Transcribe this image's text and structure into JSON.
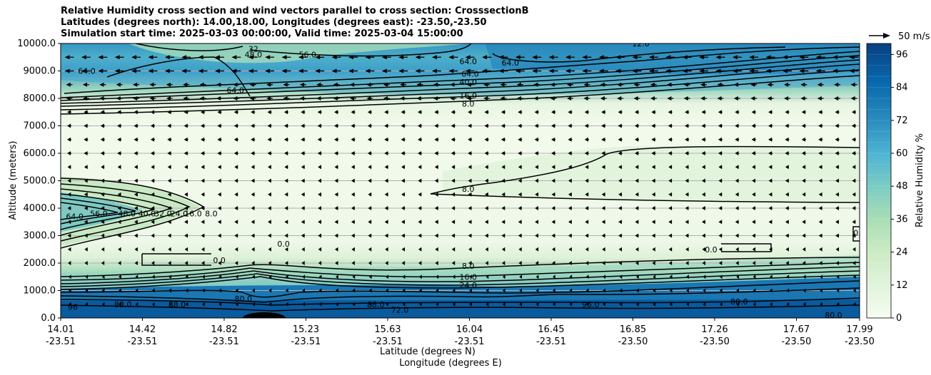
{
  "title_lines": [
    "Relative Humidity cross section and wind vectors parallel to cross section: CrosssectionB",
    "Latitudes (degrees north): 14.00,18.00, Longitudes (degrees east): -23.50,-23.50",
    "Simulation start time: 2025-03-03 00:00:00, Valid time: 2025-03-04 15:00:00"
  ],
  "chart_data": {
    "type": "heatmap",
    "title": "Relative Humidity cross section and wind vectors parallel to cross section: CrosssectionB",
    "ylabel": "Altitude (meters)",
    "xlabel_lines": [
      "Latitude (degrees N)",
      "Longitude (degrees E)"
    ],
    "ylim": [
      0,
      10000
    ],
    "y_ticks": [
      "0.0",
      "1000.0",
      "2000.0",
      "3000.0",
      "4000.0",
      "5000.0",
      "6000.0",
      "7000.0",
      "8000.0",
      "9000.0",
      "10000.0"
    ],
    "x_ticks": [
      {
        "lat": "14.01",
        "lon": "-23.51"
      },
      {
        "lat": "14.42",
        "lon": "-23.51"
      },
      {
        "lat": "14.82",
        "lon": "-23.51"
      },
      {
        "lat": "15.23",
        "lon": "-23.51"
      },
      {
        "lat": "15.63",
        "lon": "-23.51"
      },
      {
        "lat": "16.04",
        "lon": "-23.51"
      },
      {
        "lat": "16.45",
        "lon": "-23.51"
      },
      {
        "lat": "16.85",
        "lon": "-23.50"
      },
      {
        "lat": "17.26",
        "lon": "-23.50"
      },
      {
        "lat": "17.67",
        "lon": "-23.50"
      },
      {
        "lat": "17.99",
        "lon": "-23.50"
      }
    ],
    "grid": true,
    "colorbar": {
      "label": "Relative Humidity %",
      "ticks": [
        "0",
        "12",
        "24",
        "36",
        "48",
        "60",
        "72",
        "84",
        "96"
      ],
      "range": [
        0,
        100
      ],
      "colors": [
        "#f7fcf0",
        "#e0f3db",
        "#ccebc5",
        "#a8ddb5",
        "#7bccc4",
        "#4eb3d3",
        "#2b8cbe",
        "#0868ac",
        "#084081"
      ]
    },
    "quiver_key": {
      "label": "50 m/s"
    },
    "contour_labels": [
      {
        "text": "48.0",
        "x": 14.97,
        "y": 9600
      },
      {
        "text": "56.0",
        "x": 15.24,
        "y": 9600
      },
      {
        "text": "64.0",
        "x": 14.14,
        "y": 9000
      },
      {
        "text": "32",
        "x": 14.97,
        "y": 9800
      },
      {
        "text": "64.0",
        "x": 14.88,
        "y": 8300
      },
      {
        "text": "64.0",
        "x": 16.04,
        "y": 9350
      },
      {
        "text": "64.0",
        "x": 16.05,
        "y": 8900
      },
      {
        "text": "40.0",
        "x": 16.04,
        "y": 8600
      },
      {
        "text": "16.0",
        "x": 16.04,
        "y": 8100
      },
      {
        "text": "8.0",
        "x": 16.04,
        "y": 7800
      },
      {
        "text": "64.0",
        "x": 16.25,
        "y": 9300
      },
      {
        "text": "12.0",
        "x": 16.9,
        "y": 10000
      },
      {
        "text": "64.0",
        "x": 14.08,
        "y": 3700
      },
      {
        "text": "56.0",
        "x": 14.2,
        "y": 3800
      },
      {
        "text": "48.0",
        "x": 14.34,
        "y": 3800
      },
      {
        "text": "40.0",
        "x": 14.44,
        "y": 3800
      },
      {
        "text": "32.0",
        "x": 14.52,
        "y": 3800
      },
      {
        "text": "24.0",
        "x": 14.6,
        "y": 3800
      },
      {
        "text": "16.0",
        "x": 14.67,
        "y": 3800
      },
      {
        "text": "8.0",
        "x": 14.76,
        "y": 3800
      },
      {
        "text": "0.0",
        "x": 14.8,
        "y": 2100
      },
      {
        "text": "0.0",
        "x": 15.12,
        "y": 2700
      },
      {
        "text": "8.0",
        "x": 16.04,
        "y": 4700
      },
      {
        "text": "8.0",
        "x": 16.04,
        "y": 1900
      },
      {
        "text": "16.0",
        "x": 16.04,
        "y": 1500
      },
      {
        "text": "24.0",
        "x": 16.04,
        "y": 1200
      },
      {
        "text": "0.0",
        "x": 17.25,
        "y": 2500
      },
      {
        "text": "0.0",
        "x": 17.99,
        "y": 3100
      },
      {
        "text": "80.0",
        "x": 14.92,
        "y": 700
      },
      {
        "text": "80.0",
        "x": 17.39,
        "y": 600
      },
      {
        "text": "96",
        "x": 14.07,
        "y": 400
      },
      {
        "text": "88.0",
        "x": 14.32,
        "y": 500
      },
      {
        "text": "88.0",
        "x": 14.59,
        "y": 500
      },
      {
        "text": "88.0",
        "x": 15.58,
        "y": 500
      },
      {
        "text": "72.0",
        "x": 15.7,
        "y": 300
      },
      {
        "text": "96.0",
        "x": 16.65,
        "y": 500
      },
      {
        "text": "80.0",
        "x": 17.86,
        "y": 100
      }
    ]
  }
}
